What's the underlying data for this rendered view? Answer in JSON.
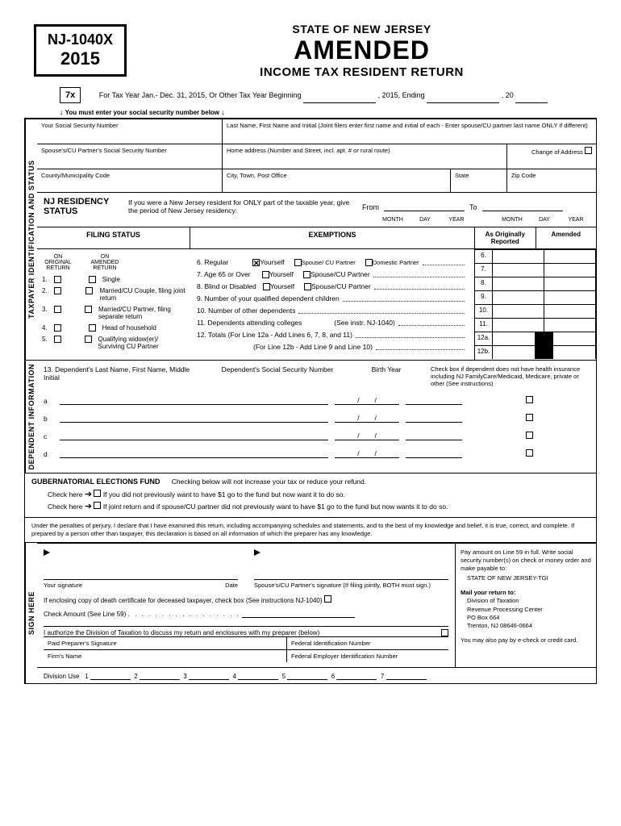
{
  "form": {
    "code": "NJ-1040X",
    "year": "2015"
  },
  "title": {
    "state": "STATE OF NEW JERSEY",
    "amended": "AMENDED",
    "sub": "INCOME TAX RESIDENT RETURN"
  },
  "box7x": "7x",
  "taxyear": {
    "text": "For Tax Year Jan.- Dec. 31, 2015, Or Other Tax Year Beginning",
    "mid": ", 2015, Ending",
    "end": ", 20"
  },
  "ssnNote": "You must enter your social security number below",
  "id": {
    "ssn": "Your Social Security Number",
    "name": "Last Name, First Name and Initial (Joint filers enter first name and initial of each - Enter spouse/CU partner last name ONLY if different)",
    "spouseSsn": "Spouse's/CU Partner's Social Security Number",
    "address": "Home address (Number and Street, incl. apt. # or rural route)",
    "changeAddr": "Change of Address",
    "county": "County/Municipality Code",
    "city": "City, Town, Post Office",
    "state": "State",
    "zip": "Zip Code"
  },
  "residency": {
    "title": "NJ RESIDENCY STATUS",
    "text": "If you were a New Jersey resident for ONLY part of the taxable year, give the period of New Jersey residency:",
    "from": "From",
    "to": "To",
    "m": "MONTH",
    "d": "DAY",
    "y": "YEAR"
  },
  "headers": {
    "filing": "FILING STATUS",
    "exemptions": "EXEMPTIONS",
    "orig": "As Originally Reported",
    "amend": "Amended"
  },
  "filing": {
    "col1": "ON ORIGINAL RETURN",
    "col2": "ON AMENDED RETURN",
    "opts": [
      "Single",
      "Married/CU Couple, filing joint return",
      "Married/CU Partner, filing separate return",
      "Head of household",
      "Qualifying widow(er)/ Surviving CU Partner"
    ]
  },
  "ex": {
    "l6": "6. Regular",
    "l6a": "Yourself",
    "l6b": "Spouse/ CU Partner",
    "l6c": "Domestic Partner",
    "l7": "7. Age 65 or Over",
    "l7a": "Yourself",
    "l7b": "Spouse/CU Partner",
    "l8": "8. Blind or Disabled",
    "l8a": "Yourself",
    "l8b": "Spouse/CU Partner",
    "l9": "9. Number of your qualified dependent children",
    "l10": "10. Number of other dependents",
    "l11": "11. Dependents attending colleges",
    "l11b": "(See instr. NJ-1040)",
    "l12": "12. Totals  (For Line 12a - Add Lines 6, 7, 8, and 11)",
    "l12b": "(For Line 12b - Add Line 9 and Line 10)"
  },
  "amtNums": [
    "6.",
    "7.",
    "8.",
    "9.",
    "10.",
    "11.",
    "12a.",
    "12b."
  ],
  "dep": {
    "l13": "13.  Dependent's Last Name, First Name, Middle Initial",
    "ssn": "Dependent's Social Security Number",
    "by": "Birth Year",
    "note": "Check box if dependent does not have health insurance including NJ FamilyCare/Medicaid, Medicare, private or other (See instructions)",
    "rows": [
      "a",
      "b",
      "c",
      "d"
    ]
  },
  "guber": {
    "title": "GUBERNATORIAL ELECTIONS FUND",
    "sub": "Checking below will not increase your tax or reduce your refund.",
    "check": "Check here",
    "l1": "If you did not previously want to have $1 go to the fund but now want it to do so.",
    "l2": "If joint return and if spouse/CU partner did not previously want to have $1 go to the fund but now wants it to do so."
  },
  "perjury": "Under the penalties of perjury, I declare that I have examined this return, including accompanying schedules and statements, and to the best of my knowledge and belief, it is true, correct, and complete.  If prepared by a person other than taxpayer, this declaration is based on all information of which the preparer has any knowledge.",
  "sign": {
    "yourSig": "Your signature",
    "date": "Date",
    "spouseSig": "Spouse's/CU Partner's signature (If filing jointly, BOTH must sign.)",
    "death": "If enclosing copy of death certificate for deceased taxpayer, check box (See instructions NJ-1040)",
    "checkAmt": "Check Amount (See Line 59)",
    "auth": "I authorize the Division of Taxation to discuss my return and enclosures with my preparer (below)",
    "prep": "Paid Preparer's Signature",
    "fed": "Federal Identification Number",
    "firm": "Firm's Name",
    "fein": "Federal Employer Identification Number",
    "pay": "Pay amount on Line 59 in full. Write social security number(s) on check or money order and make payable to:",
    "payee": "STATE OF NEW JERSEY-TGI",
    "mail": "Mail your return to:",
    "addr1": "Division of Taxation",
    "addr2": "Revenue Processing Center",
    "addr3": "PO Box 664",
    "addr4": "Trenton, NJ 08646-0664",
    "echeck": "You may also pay by e-check or credit card."
  },
  "divuse": {
    "label": "Division Use",
    "nums": [
      "1",
      "2",
      "3",
      "4",
      "5",
      "6",
      "7"
    ]
  },
  "vlabels": {
    "tax": "TAXPAYER IDENTIFICATION AND STATUS",
    "dep": "DEPENDENT INFORMATION",
    "sign": "SIGN  HERE"
  }
}
